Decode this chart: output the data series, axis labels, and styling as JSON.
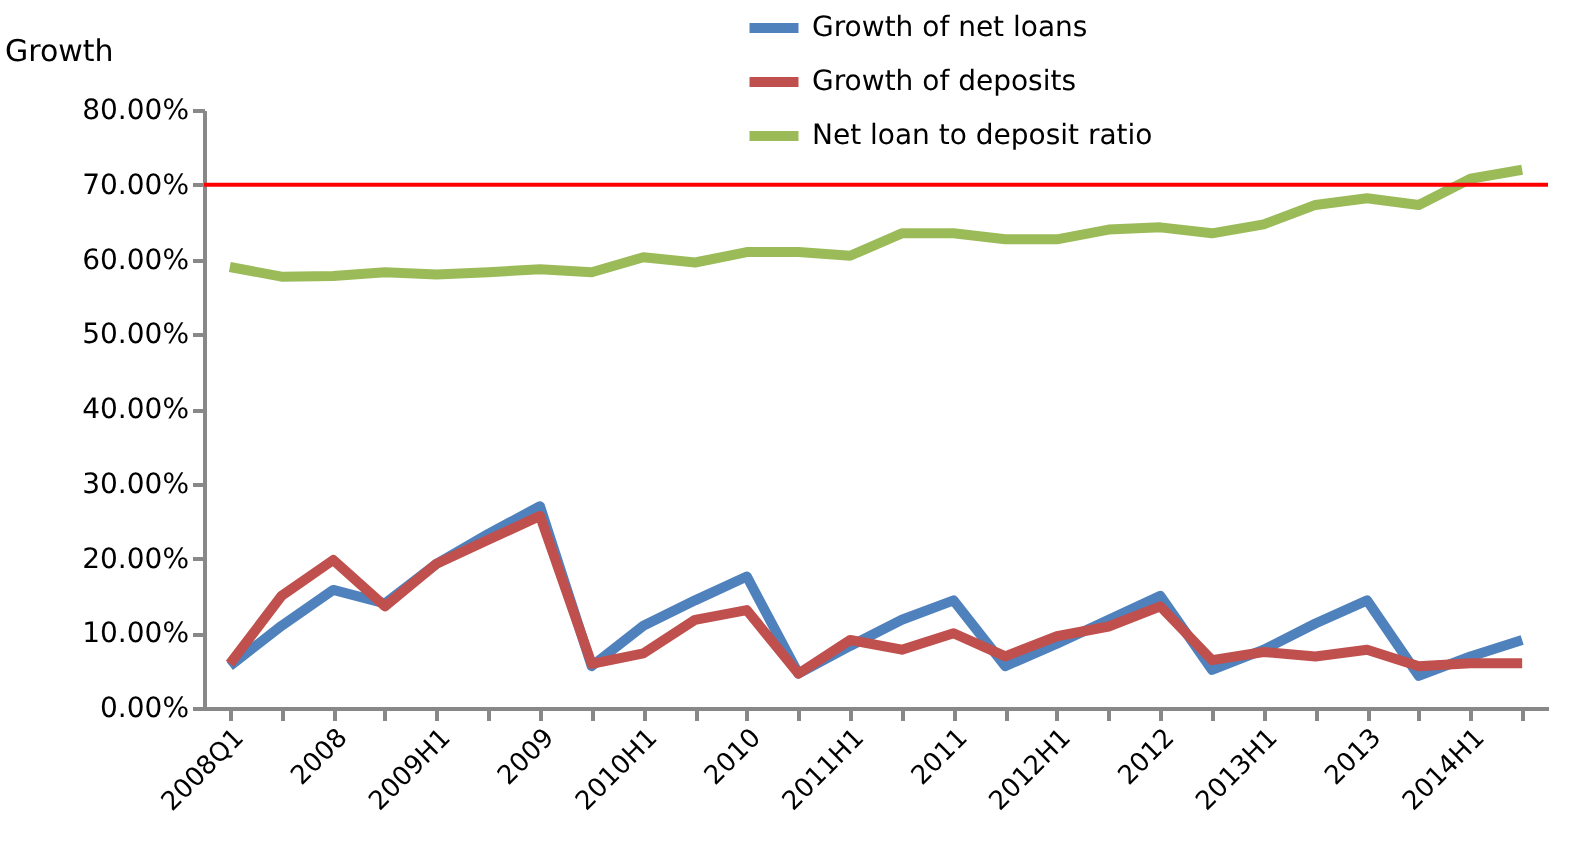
{
  "chart_data": {
    "type": "line",
    "ylabel": "Growth",
    "categories": [
      "2008Q1",
      null,
      "2008",
      null,
      "2009H1",
      null,
      "2009",
      null,
      "2010H1",
      null,
      "2010",
      null,
      "2011H1",
      null,
      "2011",
      null,
      "2012H1",
      null,
      "2012",
      null,
      "2013H1",
      null,
      "2013",
      null,
      "2014H1",
      null
    ],
    "series": [
      {
        "name": "Growth of net loans",
        "color": "#4f81bd",
        "values": [
          5.6,
          11,
          15.8,
          14,
          19.3,
          23.3,
          27,
          5.6,
          11,
          14.4,
          17.6,
          4.6,
          8.3,
          11.8,
          14.4,
          5.6,
          8.6,
          11.8,
          15,
          5.1,
          7.8,
          11.3,
          14.4,
          4.3,
          6.9,
          9.1
        ]
      },
      {
        "name": "Growth of deposits",
        "color": "#c0504d",
        "values": [
          5.9,
          15,
          19.8,
          13.6,
          19.3,
          22.5,
          25.7,
          5.9,
          7.3,
          11.8,
          13.1,
          4.6,
          9.1,
          7.8,
          10,
          6.9,
          9.6,
          10.9,
          13.6,
          6.4,
          7.5,
          6.9,
          7.8,
          5.6,
          6.0,
          6.0
        ]
      },
      {
        "name": "Net loan to deposit ratio",
        "color": "#9bbb59",
        "values": [
          59,
          57.7,
          57.8,
          58.3,
          58,
          58.3,
          58.7,
          58.3,
          60.3,
          59.6,
          61,
          61,
          60.5,
          63.5,
          63.5,
          62.7,
          62.7,
          64,
          64.3,
          63.5,
          64.7,
          67.3,
          68.2,
          67.3,
          70.8,
          72
        ]
      }
    ],
    "ylim": [
      0,
      80
    ],
    "yticks": [
      {
        "value": 0,
        "label": "0.00%"
      },
      {
        "value": 10,
        "label": "10.00%"
      },
      {
        "value": 20,
        "label": "20.00%"
      },
      {
        "value": 30,
        "label": "30.00%"
      },
      {
        "value": 40,
        "label": "40.00%"
      },
      {
        "value": 50,
        "label": "50.00%"
      },
      {
        "value": 60,
        "label": "60.00%"
      },
      {
        "value": 70,
        "label": "70.00%"
      },
      {
        "value": 80,
        "label": "80.00%"
      }
    ],
    "ref_lines": [
      {
        "axis": "y",
        "value": 70,
        "color": "#ff0000"
      }
    ],
    "legend": "top",
    "grid": false,
    "marker": "none",
    "line_style": "solid"
  }
}
